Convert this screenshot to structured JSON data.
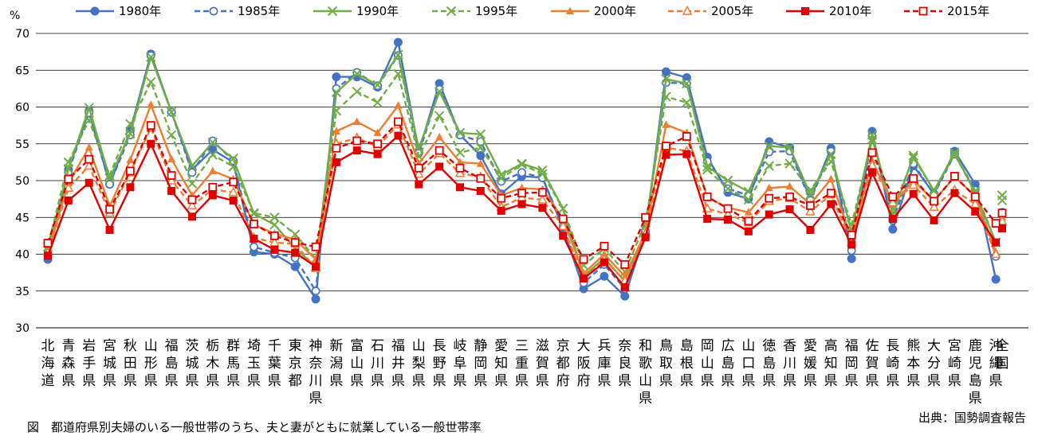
{
  "chart_data": {
    "type": "line",
    "ylabel": "%",
    "ylim": [
      30,
      70
    ],
    "yticks": [
      30,
      35,
      40,
      45,
      50,
      55,
      60,
      65,
      70
    ],
    "grid": true,
    "legend_position": "top",
    "caption": "図　都道府県別夫婦のいる一般世帯のうち、夫と妻がともに就業している一般世帯率",
    "source": "出典：国勢調査報告",
    "categories": [
      "北海道",
      "青森県",
      "岩手県",
      "宮城県",
      "秋田県",
      "山形県",
      "福島県",
      "茨城県",
      "栃木県",
      "群馬県",
      "埼玉県",
      "千葉県",
      "東京都",
      "神奈川県",
      "新潟県",
      "富山県",
      "石川県",
      "福井県",
      "山梨県",
      "長野県",
      "岐阜県",
      "静岡県",
      "愛知県",
      "三重県",
      "滋賀県",
      "京都府",
      "大阪府",
      "兵庫県",
      "奈良県",
      "和歌山県",
      "鳥取県",
      "島根県",
      "岡山県",
      "広島県",
      "山口県",
      "徳島県",
      "香川県",
      "愛媛県",
      "高知県",
      "福岡県",
      "佐賀県",
      "長崎県",
      "熊本県",
      "大分県",
      "宮崎県",
      "鹿児島県",
      "沖縄県",
      "全国"
    ],
    "series": [
      {
        "name": "1980年",
        "color": "#4472C4",
        "dash": "solid",
        "marker": "circle-filled",
        "values": [
          39.3,
          51.5,
          59.5,
          49.5,
          56.8,
          67.2,
          59.3,
          51.5,
          54.2,
          52.5,
          40.3,
          40.0,
          38.3,
          33.9,
          64.1,
          64.1,
          62.7,
          68.8,
          54.0,
          63.2,
          56.2,
          53.4,
          48.2,
          50.6,
          50.4,
          43.5,
          35.3,
          37.0,
          34.3,
          43.0,
          64.8,
          64.0,
          53.2,
          48.4,
          47.5,
          55.3,
          54.5,
          47.5,
          54.4,
          39.4,
          56.7,
          43.4,
          52.0,
          48.2,
          54.0,
          49.5,
          36.6,
          45.3
        ]
      },
      {
        "name": "1985年",
        "color": "#4472C4",
        "dash": "dash",
        "marker": "circle-open",
        "values": [
          40.0,
          51.2,
          59.2,
          49.5,
          56.2,
          67.0,
          59.3,
          51.1,
          55.4,
          52.7,
          41.0,
          40.2,
          39.5,
          35.0,
          62.5,
          64.7,
          62.9,
          67.0,
          53.7,
          62.4,
          56.2,
          55.3,
          49.9,
          51.1,
          50.4,
          43.8,
          36.1,
          38.6,
          35.3,
          43.2,
          63.3,
          63.2,
          52.6,
          48.9,
          48.0,
          53.9,
          54.0,
          47.3,
          54.0,
          40.5,
          56.0,
          44.6,
          52.3,
          48.1,
          53.6,
          48.7,
          39.7,
          45.7
        ]
      },
      {
        "name": "1990年",
        "color": "#70AD47",
        "dash": "solid",
        "marker": "x",
        "values": [
          40.5,
          51.6,
          59.9,
          50.3,
          56.4,
          66.8,
          59.3,
          52.0,
          55.2,
          53.0,
          45.5,
          44.0,
          40.8,
          38.3,
          62.0,
          64.5,
          63.0,
          67.1,
          54.4,
          62.1,
          56.5,
          56.3,
          50.8,
          52.3,
          51.4,
          46.2,
          37.0,
          39.5,
          36.3,
          43.2,
          63.8,
          63.2,
          51.9,
          50.0,
          48.5,
          54.7,
          54.5,
          48.1,
          53.6,
          43.0,
          56.2,
          45.3,
          53.4,
          48.6,
          53.8,
          48.3,
          41.6,
          47.3
        ]
      },
      {
        "name": "1995年",
        "color": "#70AD47",
        "dash": "dash",
        "marker": "x",
        "values": [
          41.0,
          52.5,
          58.2,
          50.7,
          57.7,
          63.4,
          56.2,
          49.6,
          53.5,
          51.9,
          45.6,
          45.0,
          42.7,
          39.4,
          59.5,
          62.1,
          60.6,
          64.5,
          53.3,
          58.8,
          53.8,
          54.5,
          50.3,
          52.2,
          50.9,
          46.2,
          38.5,
          40.8,
          37.6,
          44.3,
          61.4,
          60.6,
          51.5,
          48.9,
          47.4,
          52.0,
          52.3,
          48.7,
          52.6,
          44.0,
          55.6,
          46.1,
          53.1,
          48.7,
          53.5,
          48.6,
          41.6,
          48.0
        ]
      },
      {
        "name": "2000年",
        "color": "#ED7D31",
        "dash": "solid",
        "marker": "triangle-filled",
        "values": [
          40.2,
          49.7,
          54.5,
          46.5,
          52.8,
          60.3,
          52.9,
          48.0,
          51.3,
          50.2,
          44.0,
          42.8,
          42.0,
          39.3,
          56.7,
          58.0,
          56.5,
          60.2,
          52.3,
          55.9,
          52.5,
          52.3,
          48.0,
          49.0,
          48.8,
          44.8,
          37.4,
          40.0,
          37.0,
          43.0,
          57.6,
          56.5,
          47.7,
          46.3,
          45.7,
          49.0,
          49.2,
          46.8,
          50.2,
          42.0,
          52.7,
          46.8,
          50.0,
          47.3,
          50.5,
          47.9,
          40.3,
          45.0
        ]
      },
      {
        "name": "2005年",
        "color": "#ED7D31",
        "dash": "dash",
        "marker": "triangle-open",
        "values": [
          40.2,
          49.0,
          52.0,
          45.6,
          51.1,
          57.2,
          50.0,
          46.6,
          48.8,
          48.4,
          42.2,
          41.6,
          41.4,
          38.1,
          55.0,
          55.8,
          54.6,
          57.6,
          50.9,
          53.7,
          51.0,
          50.5,
          46.4,
          47.7,
          47.4,
          43.8,
          36.7,
          39.3,
          36.4,
          42.8,
          54.5,
          54.0,
          46.2,
          45.4,
          44.3,
          47.2,
          47.6,
          45.8,
          48.1,
          41.6,
          52.1,
          47.0,
          49.4,
          46.4,
          48.7,
          46.8,
          40.0,
          44.5
        ]
      },
      {
        "name": "2010年",
        "color": "#E00000",
        "dash": "solid",
        "marker": "square-filled",
        "values": [
          39.8,
          47.3,
          49.7,
          43.3,
          49.1,
          55.0,
          48.6,
          45.1,
          48.0,
          47.3,
          42.1,
          40.6,
          40.2,
          38.3,
          52.5,
          54.1,
          53.6,
          56.1,
          49.5,
          51.9,
          49.1,
          48.6,
          45.9,
          46.8,
          46.3,
          42.5,
          36.7,
          38.9,
          35.5,
          42.3,
          53.5,
          53.6,
          44.8,
          44.7,
          43.1,
          45.4,
          46.1,
          43.3,
          46.8,
          41.3,
          51.1,
          44.8,
          48.2,
          44.6,
          48.3,
          45.8,
          41.6,
          43.5
        ]
      },
      {
        "name": "2015年",
        "color": "#E00000",
        "dash": "dash",
        "marker": "square-open",
        "values": [
          41.5,
          50.2,
          52.9,
          46.1,
          51.3,
          57.5,
          50.7,
          47.4,
          49.1,
          49.8,
          44.1,
          42.5,
          41.6,
          41.0,
          54.4,
          55.4,
          55.0,
          58.0,
          51.7,
          54.1,
          51.7,
          50.3,
          47.6,
          48.3,
          48.4,
          44.8,
          39.3,
          41.1,
          38.6,
          45.0,
          54.7,
          56.0,
          47.8,
          46.2,
          44.5,
          47.6,
          47.8,
          46.6,
          48.3,
          42.6,
          53.8,
          47.8,
          50.3,
          47.2,
          50.6,
          47.8,
          44.2,
          45.6
        ]
      }
    ]
  }
}
